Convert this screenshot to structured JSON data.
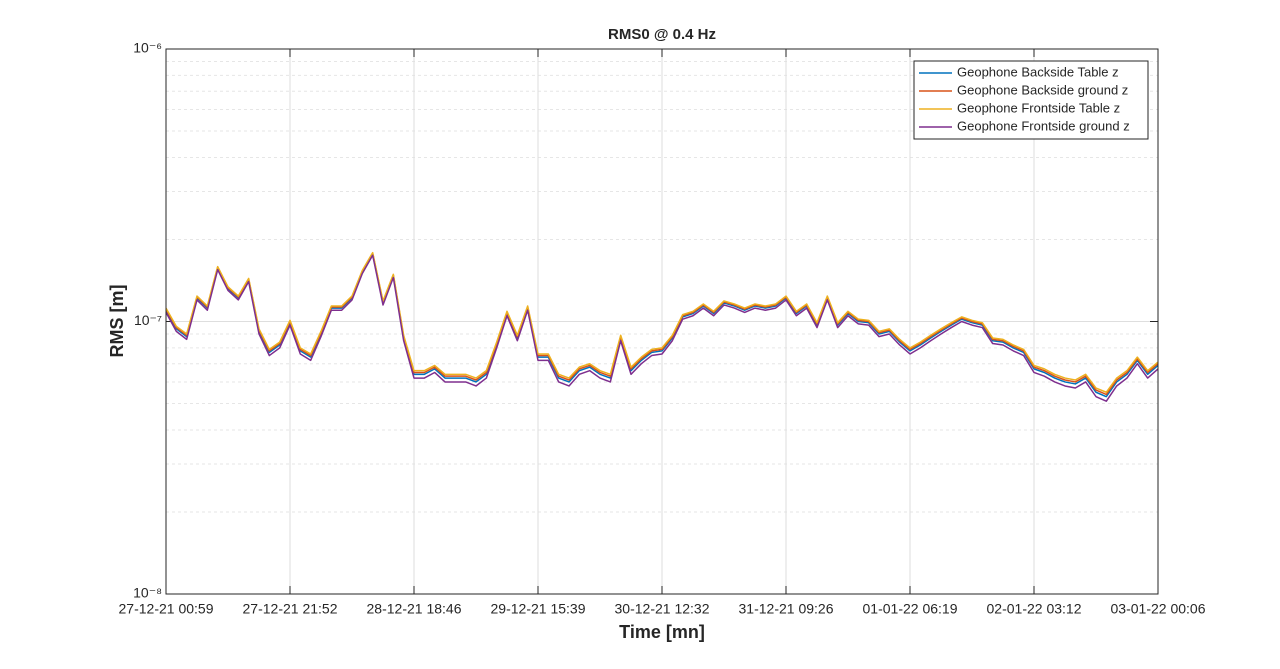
{
  "chart_data": {
    "type": "line",
    "title": "RMS0 @ 0.4 Hz",
    "x_label": "Time [mn]",
    "y_label": "RMS [m]",
    "yscale": "log",
    "grid": true,
    "minor_grid": true,
    "legend": "upper right",
    "ylim": [
      1e-08,
      1e-06
    ],
    "yticks": [
      {
        "value": 1e-08,
        "label": "10⁻⁸"
      },
      {
        "value": 1e-07,
        "label": "10⁻⁷"
      },
      {
        "value": 1e-06,
        "label": "10⁻⁶"
      }
    ],
    "categories": [
      "27-12-21 00:59",
      null,
      null,
      null,
      null,
      null,
      null,
      null,
      null,
      null,
      null,
      null,
      "27-12-21 21:52",
      null,
      null,
      null,
      null,
      null,
      null,
      null,
      null,
      null,
      null,
      null,
      "28-12-21 18:46",
      null,
      null,
      null,
      null,
      null,
      null,
      null,
      null,
      null,
      null,
      null,
      "29-12-21 15:39",
      null,
      null,
      null,
      null,
      null,
      null,
      null,
      null,
      null,
      null,
      null,
      "30-12-21 12:32",
      null,
      null,
      null,
      null,
      null,
      null,
      null,
      null,
      null,
      null,
      null,
      "31-12-21 09:26",
      null,
      null,
      null,
      null,
      null,
      null,
      null,
      null,
      null,
      null,
      null,
      "01-01-22 06:19",
      null,
      null,
      null,
      null,
      null,
      null,
      null,
      null,
      null,
      null,
      null,
      "02-01-22 03:12",
      null,
      null,
      null,
      null,
      null,
      null,
      null,
      null,
      null,
      null,
      null,
      "03-01-22 00:06"
    ],
    "series": [
      {
        "name": "Geophone Backside Table z",
        "color": "#0072BD",
        "values": [
          1.1e-07,
          9.4e-08,
          8.8e-08,
          1.22e-07,
          1.12e-07,
          1.57e-07,
          1.32e-07,
          1.22e-07,
          1.42e-07,
          9.2e-08,
          7.7e-08,
          8.2e-08,
          9.9e-08,
          7.8e-08,
          7.4e-08,
          9e-08,
          1.12e-07,
          1.12e-07,
          1.22e-07,
          1.52e-07,
          1.77e-07,
          1.17e-07,
          1.47e-07,
          8.7e-08,
          6.4e-08,
          6.4e-08,
          6.7e-08,
          6.2e-08,
          6.2e-08,
          6.2e-08,
          6e-08,
          6.4e-08,
          8.2e-08,
          1.07e-07,
          8.7e-08,
          1.12e-07,
          7.4e-08,
          7.4e-08,
          6.2e-08,
          6e-08,
          6.6e-08,
          6.8e-08,
          6.4e-08,
          6.2e-08,
          8.7e-08,
          6.6e-08,
          7.2e-08,
          7.7e-08,
          7.8e-08,
          8.7e-08,
          1.04e-07,
          1.07e-07,
          1.14e-07,
          1.07e-07,
          1.17e-07,
          1.14e-07,
          1.1e-07,
          1.14e-07,
          1.12e-07,
          1.14e-07,
          1.22e-07,
          1.07e-07,
          1.14e-07,
          9.7e-08,
          1.22e-07,
          9.7e-08,
          1.07e-07,
          1e-07,
          9.9e-08,
          9e-08,
          9.2e-08,
          8.4e-08,
          7.8e-08,
          8.2e-08,
          8.7e-08,
          9.2e-08,
          9.7e-08,
          1.02e-07,
          9.9e-08,
          9.7e-08,
          8.5e-08,
          8.4e-08,
          8e-08,
          7.7e-08,
          6.7e-08,
          6.5e-08,
          6.2e-08,
          6e-08,
          5.9e-08,
          6.2e-08,
          5.5e-08,
          5.3e-08,
          6e-08,
          6.4e-08,
          7.2e-08,
          6.4e-08,
          6.9e-08
        ]
      },
      {
        "name": "Geophone Backside ground z",
        "color": "#D95319",
        "values": [
          1.11e-07,
          9.5e-08,
          8.9e-08,
          1.23e-07,
          1.13e-07,
          1.58e-07,
          1.33e-07,
          1.23e-07,
          1.43e-07,
          9.3e-08,
          7.8e-08,
          8.3e-08,
          1e-07,
          7.9e-08,
          7.5e-08,
          9.1e-08,
          1.13e-07,
          1.13e-07,
          1.23e-07,
          1.53e-07,
          1.78e-07,
          1.18e-07,
          1.48e-07,
          8.8e-08,
          6.5e-08,
          6.5e-08,
          6.8e-08,
          6.3e-08,
          6.3e-08,
          6.3e-08,
          6.1e-08,
          6.5e-08,
          8.3e-08,
          1.08e-07,
          8.8e-08,
          1.13e-07,
          7.5e-08,
          7.5e-08,
          6.3e-08,
          6.1e-08,
          6.7e-08,
          6.9e-08,
          6.5e-08,
          6.3e-08,
          8.8e-08,
          6.7e-08,
          7.3e-08,
          7.8e-08,
          7.9e-08,
          8.8e-08,
          1.05e-07,
          1.08e-07,
          1.15e-07,
          1.08e-07,
          1.18e-07,
          1.15e-07,
          1.11e-07,
          1.15e-07,
          1.13e-07,
          1.15e-07,
          1.23e-07,
          1.08e-07,
          1.15e-07,
          9.8e-08,
          1.23e-07,
          9.8e-08,
          1.08e-07,
          1.01e-07,
          1e-07,
          9.1e-08,
          9.3e-08,
          8.5e-08,
          7.9e-08,
          8.3e-08,
          8.8e-08,
          9.3e-08,
          9.8e-08,
          1.03e-07,
          1e-07,
          9.8e-08,
          8.6e-08,
          8.5e-08,
          8.1e-08,
          7.8e-08,
          6.8e-08,
          6.6e-08,
          6.3e-08,
          6.1e-08,
          6e-08,
          6.3e-08,
          5.6e-08,
          5.4e-08,
          6.1e-08,
          6.5e-08,
          7.3e-08,
          6.5e-08,
          7e-08
        ]
      },
      {
        "name": "Geophone Frontside Table z",
        "color": "#EDB120",
        "values": [
          1.12e-07,
          9.6e-08,
          9e-08,
          1.24e-07,
          1.14e-07,
          1.59e-07,
          1.34e-07,
          1.24e-07,
          1.44e-07,
          9.4e-08,
          7.9e-08,
          8.4e-08,
          1.01e-07,
          8e-08,
          7.6e-08,
          9.2e-08,
          1.14e-07,
          1.14e-07,
          1.24e-07,
          1.54e-07,
          1.79e-07,
          1.19e-07,
          1.49e-07,
          8.9e-08,
          6.6e-08,
          6.6e-08,
          6.9e-08,
          6.4e-08,
          6.4e-08,
          6.4e-08,
          6.2e-08,
          6.6e-08,
          8.4e-08,
          1.09e-07,
          8.9e-08,
          1.14e-07,
          7.6e-08,
          7.6e-08,
          6.4e-08,
          6.2e-08,
          6.8e-08,
          7e-08,
          6.6e-08,
          6.4e-08,
          8.9e-08,
          6.8e-08,
          7.4e-08,
          7.9e-08,
          8e-08,
          8.9e-08,
          1.06e-07,
          1.09e-07,
          1.16e-07,
          1.09e-07,
          1.19e-07,
          1.16e-07,
          1.12e-07,
          1.16e-07,
          1.14e-07,
          1.16e-07,
          1.24e-07,
          1.09e-07,
          1.16e-07,
          9.9e-08,
          1.24e-07,
          9.9e-08,
          1.09e-07,
          1.02e-07,
          1.01e-07,
          9.2e-08,
          9.4e-08,
          8.6e-08,
          8e-08,
          8.4e-08,
          8.9e-08,
          9.4e-08,
          9.9e-08,
          1.04e-07,
          1.01e-07,
          9.9e-08,
          8.7e-08,
          8.6e-08,
          8.2e-08,
          7.9e-08,
          6.9e-08,
          6.7e-08,
          6.4e-08,
          6.2e-08,
          6.1e-08,
          6.4e-08,
          5.7e-08,
          5.5e-08,
          6.2e-08,
          6.6e-08,
          7.4e-08,
          6.6e-08,
          7.1e-08
        ]
      },
      {
        "name": "Geophone Frontside ground z",
        "color": "#7E2F8E",
        "values": [
          1.08e-07,
          9.2e-08,
          8.6e-08,
          1.2e-07,
          1.1e-07,
          1.55e-07,
          1.3e-07,
          1.2e-07,
          1.4e-07,
          9e-08,
          7.5e-08,
          8e-08,
          9.7e-08,
          7.6e-08,
          7.2e-08,
          8.8e-08,
          1.1e-07,
          1.1e-07,
          1.2e-07,
          1.5e-07,
          1.75e-07,
          1.15e-07,
          1.45e-07,
          8.5e-08,
          6.2e-08,
          6.2e-08,
          6.5e-08,
          6e-08,
          6e-08,
          6e-08,
          5.8e-08,
          6.2e-08,
          8e-08,
          1.05e-07,
          8.5e-08,
          1.1e-07,
          7.2e-08,
          7.2e-08,
          6e-08,
          5.8e-08,
          6.4e-08,
          6.6e-08,
          6.2e-08,
          6e-08,
          8.5e-08,
          6.4e-08,
          7e-08,
          7.5e-08,
          7.6e-08,
          8.5e-08,
          1.02e-07,
          1.05e-07,
          1.12e-07,
          1.05e-07,
          1.15e-07,
          1.12e-07,
          1.08e-07,
          1.12e-07,
          1.1e-07,
          1.12e-07,
          1.2e-07,
          1.05e-07,
          1.12e-07,
          9.5e-08,
          1.2e-07,
          9.5e-08,
          1.05e-07,
          9.8e-08,
          9.7e-08,
          8.8e-08,
          9e-08,
          8.2e-08,
          7.6e-08,
          8e-08,
          8.5e-08,
          9e-08,
          9.5e-08,
          1e-07,
          9.7e-08,
          9.5e-08,
          8.3e-08,
          8.2e-08,
          7.8e-08,
          7.5e-08,
          6.5e-08,
          6.3e-08,
          6e-08,
          5.8e-08,
          5.7e-08,
          6e-08,
          5.3e-08,
          5.1e-08,
          5.8e-08,
          6.2e-08,
          7e-08,
          6.2e-08,
          6.7e-08
        ]
      }
    ]
  }
}
